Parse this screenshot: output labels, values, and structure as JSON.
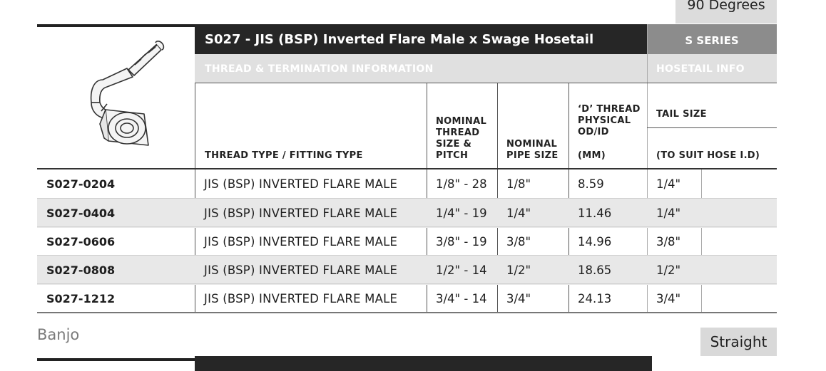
{
  "top_tab": {
    "label": "90 Degrees"
  },
  "header": {
    "title": "S027 - JIS (BSP) Inverted Flare Male x Swage Hosetail",
    "series": "S SERIES",
    "section_thread": "THREAD & TERMINATION INFORMATION",
    "section_hosetail": "HOSETAIL INFO"
  },
  "columns": {
    "thread_type": "THREAD TYPE / FITTING TYPE",
    "nominal_thread": [
      "NOMINAL",
      "THREAD",
      "SIZE &",
      "PITCH"
    ],
    "nominal_pipe": [
      "NOMINAL",
      "PIPE SIZE"
    ],
    "d_thread": [
      "‘D’ THREAD",
      "PHYSICAL",
      "OD/ID"
    ],
    "d_thread_unit": "(MM)",
    "tail_size": "TAIL SIZE",
    "tail_size_note": "(TO SUIT HOSE I.D)"
  },
  "rows": [
    {
      "code": "S027-0204",
      "type": "JIS (BSP) INVERTED FLARE MALE",
      "thread": "1/8\" - 28",
      "pipe": "1/8\"",
      "dthread": "8.59",
      "tail": "1/4\""
    },
    {
      "code": "S027-0404",
      "type": "JIS (BSP) INVERTED FLARE MALE",
      "thread": "1/4\" - 19",
      "pipe": "1/4\"",
      "dthread": "11.46",
      "tail": "1/4\""
    },
    {
      "code": "S027-0606",
      "type": "JIS (BSP) INVERTED FLARE MALE",
      "thread": "3/8\" - 19",
      "pipe": "3/8\"",
      "dthread": "14.96",
      "tail": "3/8\""
    },
    {
      "code": "S027-0808",
      "type": "JIS (BSP) INVERTED FLARE MALE",
      "thread": "1/2\" - 14",
      "pipe": "1/2\"",
      "dthread": "18.65",
      "tail": "1/2\""
    },
    {
      "code": "S027-1212",
      "type": "JIS (BSP) INVERTED FLARE MALE",
      "thread": "3/4\" - 14",
      "pipe": "3/4\"",
      "dthread": "24.13",
      "tail": "3/4\""
    }
  ],
  "footer": {
    "banjo": "Banjo",
    "straight": "Straight"
  },
  "icons": {
    "product_image": "elbow-hose-fitting-icon"
  },
  "colors": {
    "header_dark": "#262626",
    "series_grey": "#8c8c8c",
    "sub_grey": "#e0e0e0",
    "row_alt": "#e8e8e8"
  }
}
